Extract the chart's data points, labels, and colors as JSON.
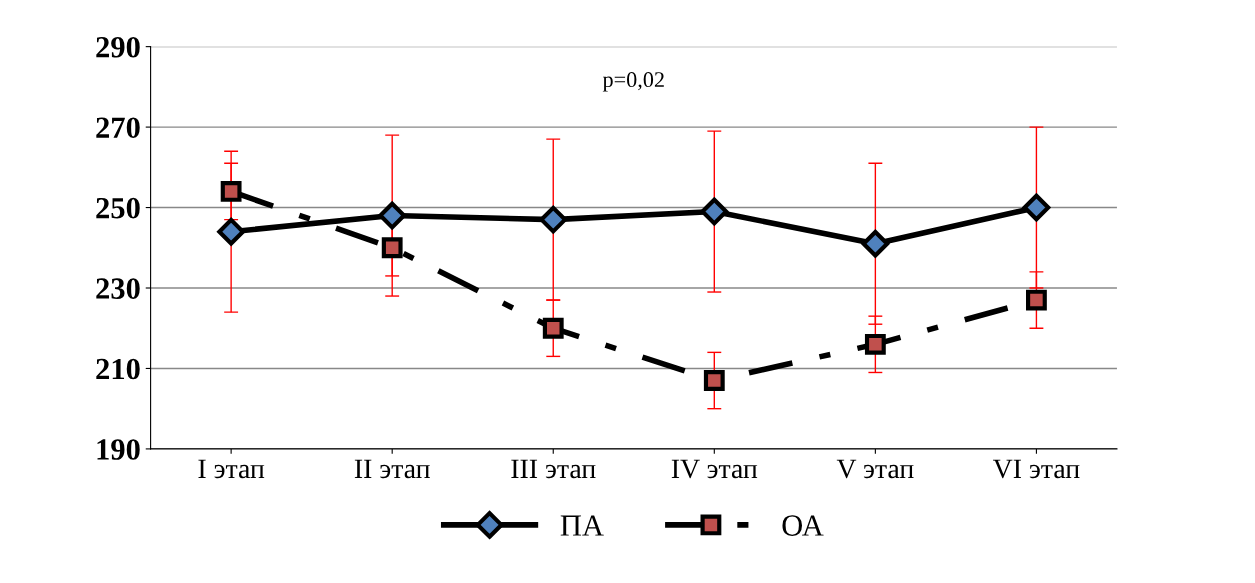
{
  "chart_data": {
    "type": "line",
    "categories": [
      "I этап",
      "II этап",
      "III этап",
      "IV этап",
      "V этап",
      "VI этап"
    ],
    "series": [
      {
        "name": "ПА",
        "color": "#4f81bd",
        "marker": "diamond",
        "line_style": "solid",
        "values": [
          244,
          248,
          247,
          249,
          241,
          250
        ],
        "errors": [
          20,
          20,
          20,
          20,
          20,
          20
        ]
      },
      {
        "name": "ОА",
        "color": "#c0504d",
        "marker": "square",
        "line_style": "dashed",
        "values": [
          254,
          240,
          220,
          207,
          216,
          227
        ],
        "errors": [
          7,
          7,
          7,
          7,
          7,
          7
        ]
      }
    ],
    "ylim": [
      190,
      290
    ],
    "yticks": [
      190,
      210,
      230,
      250,
      270,
      290
    ],
    "grid": "y",
    "legend": "bottom",
    "annotations": [
      "p=0,02"
    ]
  }
}
